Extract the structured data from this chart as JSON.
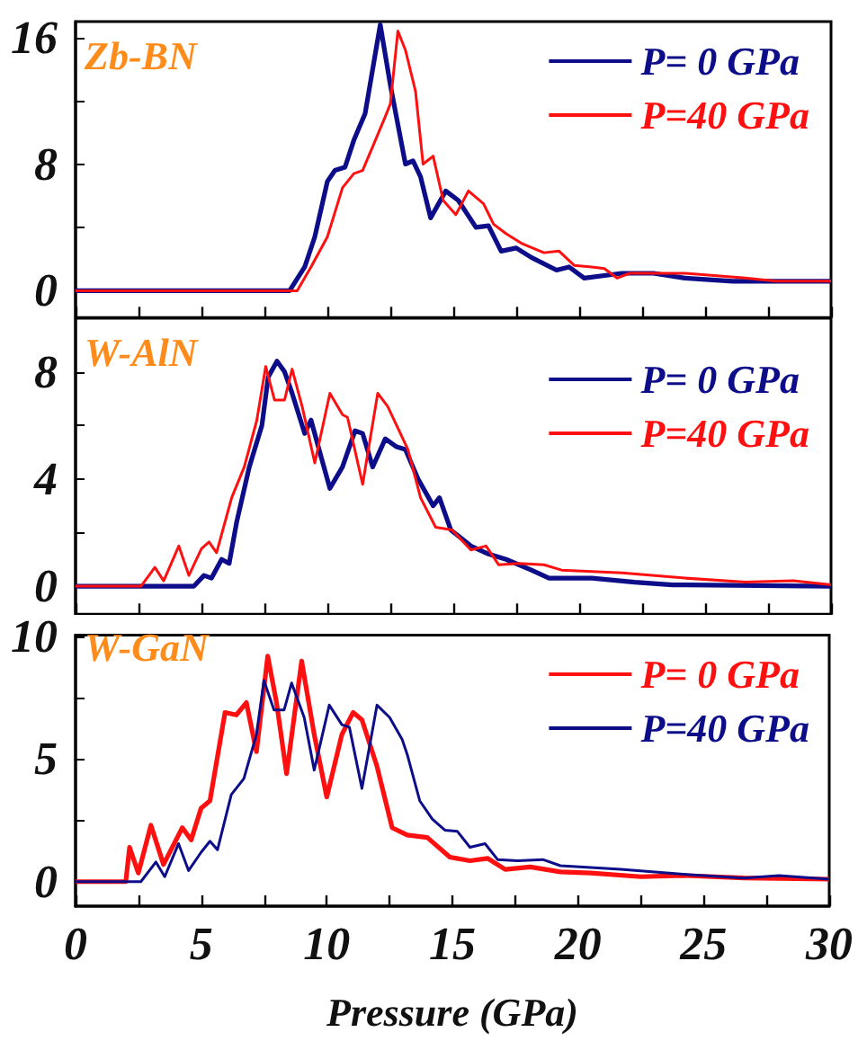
{
  "chart_data": [
    {
      "type": "line",
      "annotations": [
        "Zb-BN"
      ],
      "legend": "top right",
      "tick_labels": "y",
      "grid": false,
      "xlim": [
        0,
        30
      ],
      "xticks": [
        0,
        {
          "value": 2.5,
          "label": null
        },
        5,
        {
          "value": 7.5,
          "label": null
        },
        10,
        {
          "value": 12.5,
          "label": null
        },
        15,
        {
          "value": 17.5,
          "label": null
        },
        20,
        {
          "value": 22.5,
          "label": null
        },
        25,
        {
          "value": 27.5,
          "label": null
        },
        30
      ],
      "ylim": [
        -1.7,
        17
      ],
      "yticks": [
        0,
        {
          "value": 4,
          "label": null
        },
        8,
        {
          "value": 12,
          "label": null
        },
        16
      ],
      "series": [
        {
          "name": "P= 0 GPa",
          "color": "#0d0d8a",
          "x": [
            0,
            8.5,
            9.1,
            9.5,
            10.0,
            10.3,
            10.7,
            11.05,
            11.5,
            12.1,
            12.5,
            13.1,
            13.4,
            13.7,
            14.1,
            14.7,
            15.2,
            15.9,
            16.4,
            16.9,
            17.5,
            18.1,
            19.1,
            19.6,
            20.2,
            21.7,
            22.95,
            24.2,
            26.1,
            27.8,
            30
          ],
          "values": [
            0,
            0,
            1.5,
            3.4,
            6.9,
            7.6,
            7.8,
            9.5,
            11.2,
            16.8,
            13,
            8,
            8.2,
            7.2,
            4.6,
            6.3,
            5.7,
            4,
            4.1,
            2.5,
            2.7,
            2.1,
            1.3,
            1.5,
            0.8,
            1.1,
            1.1,
            0.8,
            0.6,
            0.6,
            0.6
          ]
        },
        {
          "name": "P=40 GPa",
          "color": "#ff1010",
          "x": [
            0,
            8.8,
            9.35,
            10,
            10.6,
            11.05,
            11.4,
            11.8,
            12.3,
            12.5,
            12.8,
            13.1,
            13.5,
            13.8,
            14.2,
            14.6,
            15.1,
            15.6,
            16.2,
            16.6,
            17.1,
            17.7,
            18.6,
            19.2,
            19.8,
            20.5,
            21.0,
            21.5,
            22,
            24.2,
            26.6,
            27.8,
            30
          ],
          "values": [
            0,
            0,
            1.5,
            3.4,
            6.5,
            7.4,
            7.6,
            9.1,
            11,
            11.8,
            16.4,
            15.2,
            12.6,
            8,
            8.5,
            5.7,
            4.8,
            6.3,
            5.5,
            4.2,
            3.6,
            3,
            2.4,
            2.5,
            1.6,
            1.5,
            1.4,
            0.8,
            1.1,
            1.1,
            0.8,
            0.6,
            0.6
          ]
        }
      ]
    },
    {
      "type": "line",
      "annotations": [
        "W-AlN"
      ],
      "legend": "top right",
      "tick_labels": "y",
      "grid": false,
      "xlim": [
        0,
        30
      ],
      "xticks": [
        0,
        {
          "value": 2.5,
          "label": null
        },
        5,
        {
          "value": 7.5,
          "label": null
        },
        10,
        {
          "value": 12.5,
          "label": null
        },
        15,
        {
          "value": 17.5,
          "label": null
        },
        20,
        {
          "value": 22.5,
          "label": null
        },
        25,
        {
          "value": 27.5,
          "label": null
        },
        30
      ],
      "ylim": [
        -1.05,
        10
      ],
      "yticks": [
        0,
        {
          "value": 2,
          "label": null
        },
        4,
        {
          "value": 6,
          "label": null
        },
        8
      ],
      "series": [
        {
          "name": "P= 0 GPa",
          "color": "#0d0d8a",
          "x": [
            0,
            4.7,
            5.1,
            5.4,
            5.8,
            6.1,
            6.4,
            6.9,
            7.4,
            7.65,
            8.0,
            8.3,
            8.6,
            9.1,
            9.35,
            9.7,
            10.1,
            10.6,
            11.1,
            11.4,
            11.8,
            12.3,
            12.75,
            13.1,
            13.6,
            14.2,
            14.45,
            14.9,
            15.7,
            16.4,
            17.1,
            18.1,
            18.8,
            20.5,
            22.2,
            23.7,
            30
          ],
          "values": [
            0,
            0,
            0.4,
            0.3,
            1.0,
            0.85,
            2.4,
            4.45,
            6,
            7.8,
            8.4,
            8.0,
            7.2,
            5.7,
            6.2,
            5,
            3.65,
            4.45,
            5.8,
            5.7,
            4.45,
            5.5,
            5.2,
            5.1,
            4,
            3.0,
            3.3,
            2.1,
            1.5,
            1.2,
            1.0,
            0.6,
            0.3,
            0.3,
            0.15,
            0.05,
            0
          ]
        },
        {
          "name": "P=40 GPa",
          "color": "#ff1010",
          "x": [
            0,
            2.6,
            3.15,
            3.5,
            4.1,
            4.5,
            5.0,
            5.3,
            5.6,
            6.2,
            6.7,
            7.2,
            7.55,
            7.9,
            8.3,
            8.6,
            9.0,
            9.5,
            10.1,
            10.6,
            10.8,
            11.4,
            12.0,
            12.4,
            12.9,
            13.2,
            13.7,
            14.3,
            14.95,
            15.7,
            16.3,
            16.8,
            17.6,
            18.6,
            19.3,
            21.7,
            24.2,
            26.6,
            28.5,
            30
          ],
          "values": [
            0,
            0,
            0.7,
            0.2,
            1.5,
            0.4,
            1.4,
            1.65,
            1.25,
            3.3,
            4.45,
            6.2,
            8.2,
            6.95,
            6.95,
            8.1,
            6.7,
            4.6,
            7.2,
            6.4,
            6.3,
            3.8,
            7.2,
            6.7,
            5.7,
            5.1,
            3.3,
            2.2,
            2.1,
            1.35,
            1.5,
            0.8,
            0.85,
            0.8,
            0.6,
            0.5,
            0.3,
            0.15,
            0.2,
            0.05
          ]
        }
      ]
    },
    {
      "type": "line",
      "annotations": [
        "W-GaN"
      ],
      "legend": "top right",
      "xlabel": "Pressure (GPa)",
      "grid": false,
      "xlim": [
        0,
        30
      ],
      "xticks": [
        0,
        {
          "value": 2.5,
          "label": null
        },
        5,
        {
          "value": 7.5,
          "label": null
        },
        10,
        {
          "value": 12.5,
          "label": null
        },
        15,
        {
          "value": 17.5,
          "label": null
        },
        20,
        {
          "value": 22.5,
          "label": null
        },
        25,
        {
          "value": 27.5,
          "label": null
        },
        30
      ],
      "ylim": [
        -1,
        10.05
      ],
      "yticks": [
        0,
        {
          "value": 2.5,
          "label": null
        },
        5,
        {
          "value": 7.5,
          "label": null
        },
        10
      ],
      "series": [
        {
          "name": "P= 0 GPa",
          "color": "#ff1010",
          "x": [
            0,
            2.0,
            2.15,
            2.5,
            3.0,
            3.5,
            4.25,
            4.6,
            5.0,
            5.35,
            5.95,
            6.4,
            6.8,
            7.2,
            7.65,
            8.0,
            8.4,
            9.0,
            9.5,
            10.0,
            10.6,
            11.05,
            11.4,
            12.0,
            12.6,
            13.2,
            14.0,
            14.9,
            15.7,
            16.4,
            17.1,
            18.1,
            19.3,
            20.5,
            22.5,
            24.2,
            26.6,
            30
          ],
          "values": [
            0,
            0,
            1.4,
            0.35,
            2.3,
            0.7,
            2.2,
            1.7,
            3.0,
            3.3,
            6.9,
            6.8,
            7.3,
            5.3,
            9.2,
            7.3,
            4.4,
            9.0,
            6,
            3.45,
            6,
            6.9,
            6.6,
            4.7,
            2.2,
            1.9,
            1.8,
            1.0,
            0.85,
            0.95,
            0.5,
            0.6,
            0.4,
            0.35,
            0.2,
            0.25,
            0.15,
            0.1
          ]
        },
        {
          "name": "P=40 GPa",
          "color": "#0d0d8a",
          "x": [
            0,
            2.6,
            3.2,
            3.55,
            4.1,
            4.5,
            5.0,
            5.35,
            5.65,
            6.2,
            6.7,
            7.2,
            7.5,
            7.9,
            8.3,
            8.6,
            9.1,
            9.5,
            10.1,
            10.6,
            10.9,
            11.4,
            12.0,
            12.5,
            13.0,
            13.2,
            13.7,
            14.2,
            14.7,
            15.2,
            15.7,
            16.3,
            16.8,
            17.6,
            18.6,
            19.3,
            21.7,
            24.2,
            26.6,
            28.0,
            30
          ],
          "values": [
            0,
            0,
            0.8,
            0.2,
            1.55,
            0.45,
            1.2,
            1.65,
            1.3,
            3.55,
            4.2,
            6,
            8.2,
            7.0,
            7.0,
            8.1,
            6.7,
            4.55,
            7.2,
            6.4,
            6.3,
            3.8,
            7.2,
            6.7,
            5.8,
            5.2,
            3.3,
            2.55,
            2.1,
            2.05,
            1.4,
            1.55,
            0.9,
            0.85,
            0.9,
            0.65,
            0.5,
            0.3,
            0.15,
            0.25,
            0.1
          ]
        }
      ]
    }
  ]
}
